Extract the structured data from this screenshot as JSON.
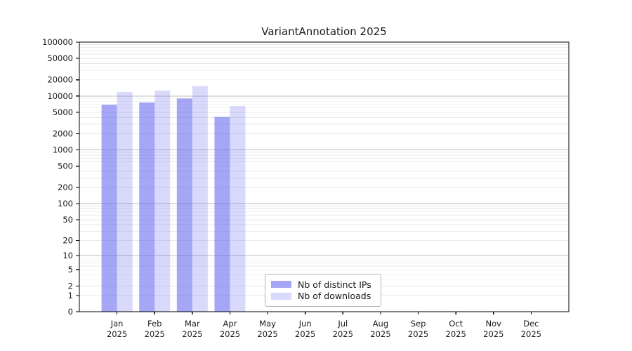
{
  "figure": {
    "title": "VariantAnnotation 2025"
  },
  "chart_data": {
    "type": "bar",
    "title": "VariantAnnotation 2025",
    "year_label": "2025",
    "categories": [
      "Jan",
      "Feb",
      "Mar",
      "Apr",
      "May",
      "Jun",
      "Jul",
      "Aug",
      "Sep",
      "Oct",
      "Nov",
      "Dec"
    ],
    "series": [
      {
        "name": "Nb of distinct IPs",
        "color": "rgba(102,102,240,0.58)",
        "values": [
          6900,
          7600,
          9000,
          4100,
          null,
          null,
          null,
          null,
          null,
          null,
          null,
          null
        ]
      },
      {
        "name": "Nb of downloads",
        "color": "rgba(102,102,240,0.25)",
        "values": [
          11900,
          12600,
          15200,
          6500,
          null,
          null,
          null,
          null,
          null,
          null,
          null,
          null
        ]
      }
    ],
    "y_ticks": [
      100000,
      50000,
      20000,
      10000,
      5000,
      2000,
      1000,
      500,
      200,
      100,
      50,
      20,
      10,
      5,
      2,
      1,
      0
    ],
    "y_scale": "log10(value+1), 0 at baseline",
    "ylim": [
      0,
      100000
    ],
    "xlabel": "",
    "ylabel": "",
    "grid": "horizontal, major and minor (log decades)",
    "legend_position": "lower center",
    "colors": {
      "bar_distinct_ips": "rgba(102,102,240,0.58)",
      "bar_downloads": "rgba(102,102,240,0.25)",
      "grid_major": "#bdbdbd",
      "grid_minor": "#e8e8e8",
      "spine": "#000000",
      "text": "#1a1a1a"
    }
  }
}
